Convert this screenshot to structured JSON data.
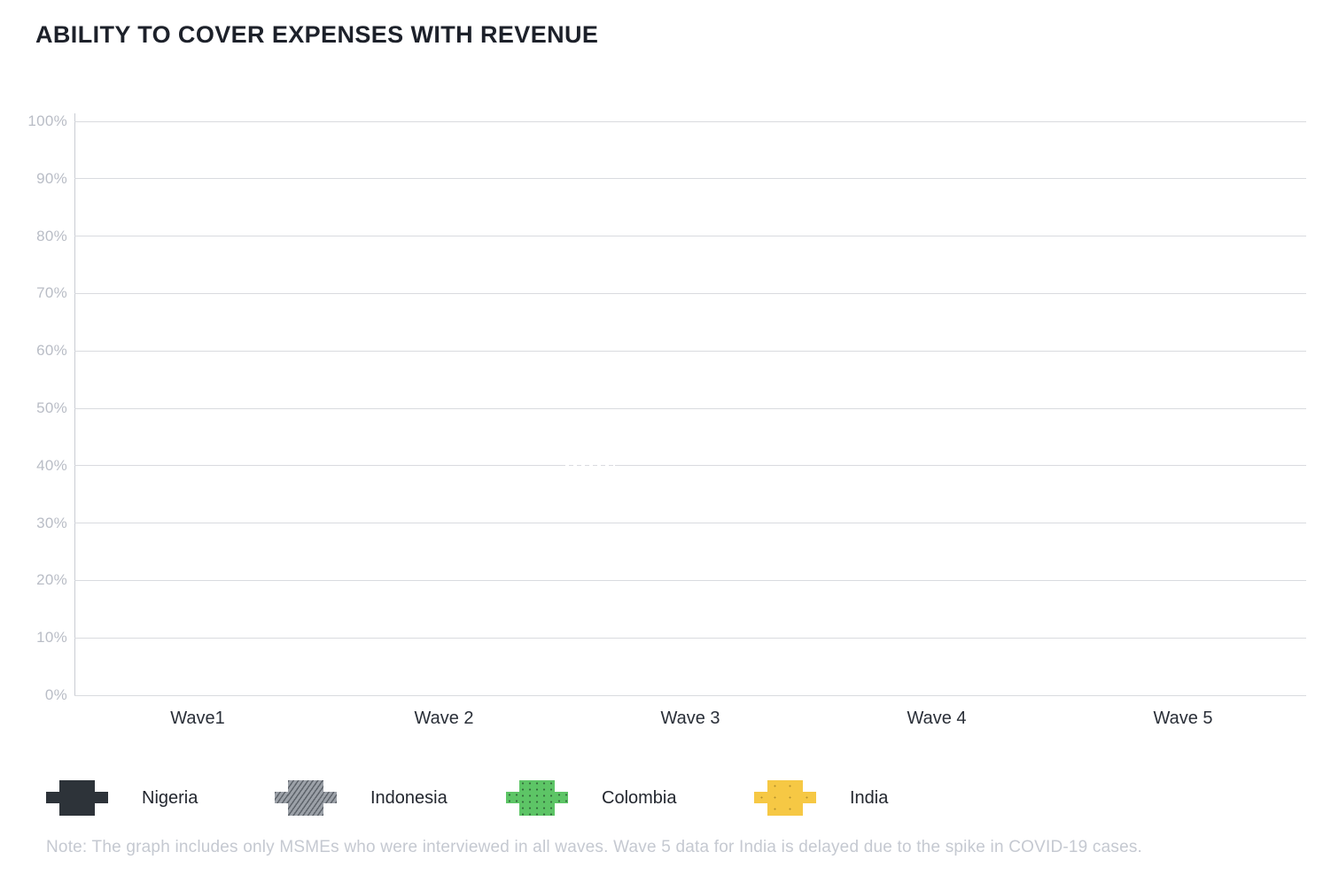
{
  "title": "ABILITY TO COVER EXPENSES WITH REVENUE",
  "note": "Note: The graph includes only MSMEs who were interviewed in all waves. Wave 5 data for India is delayed due to the spike in COVID-19 cases.",
  "chart_data": {
    "type": "line",
    "title": "ABILITY TO COVER EXPENSES WITH REVENUE",
    "categories": [
      "Wave1",
      "Wave 2",
      "Wave 3",
      "Wave 4",
      "Wave 5"
    ],
    "xlabel": "",
    "ylabel": "",
    "ylim": [
      0,
      100
    ],
    "y_ticks": [
      "100%",
      "90%",
      "80%",
      "70%",
      "60%",
      "50%",
      "40%",
      "30%",
      "20%",
      "10%",
      "0%"
    ],
    "grid": true,
    "legend_position": "bottom",
    "plot_area_empty": true,
    "series": [
      {
        "name": "Nigeria",
        "color": "#2d3339",
        "pattern": "solid",
        "values": []
      },
      {
        "name": "Indonesia",
        "color": "#9ca1a8",
        "pattern": "diagonal-hatch",
        "values": []
      },
      {
        "name": "Colombia",
        "color": "#5dc566",
        "pattern": "dots",
        "values": []
      },
      {
        "name": "India",
        "color": "#f6c844",
        "pattern": "sparse-dots",
        "values": []
      }
    ]
  },
  "colors": {
    "title": "#1d212a",
    "gridline": "#d9dbdf",
    "axis_line": "#c9ccd3",
    "y_tick_label": "#b9bdc6",
    "x_tick_label": "#2a2f38",
    "legend_label": "#23272f",
    "note": "#c5c9d1"
  }
}
